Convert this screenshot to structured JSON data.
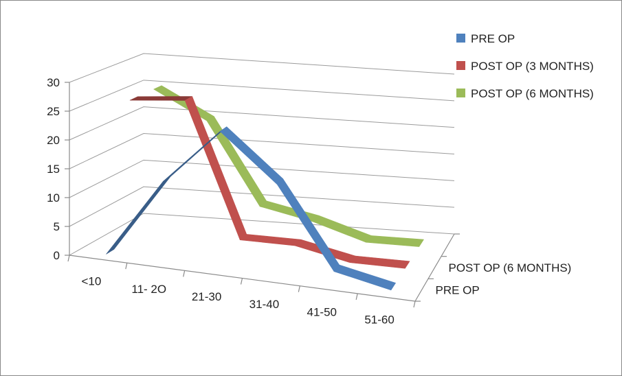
{
  "chart_data": {
    "type": "line",
    "style": "3d",
    "categories": [
      "<10",
      "11- 2O",
      "21-30",
      "31-40",
      "41-50",
      "51-60"
    ],
    "series": [
      {
        "name": "PRE OP",
        "values": [
          0,
          14,
          24,
          16,
          2,
          0
        ],
        "color": "#4f81bd"
      },
      {
        "name": "POST OP (3 MONTHS)",
        "values": [
          25,
          26,
          2,
          2,
          0,
          0
        ],
        "color": "#c0504d"
      },
      {
        "name": "POST OP (6 MONTHS)",
        "values": [
          25,
          20,
          5,
          3,
          0,
          0
        ],
        "color": "#9bbb59"
      }
    ],
    "depth_labels": [
      "POST OP (6 MONTHS)",
      "PRE OP"
    ],
    "y_ticks": [
      "0",
      "5",
      "10",
      "15",
      "20",
      "25",
      "30"
    ],
    "ylim": [
      0,
      30
    ],
    "grid": true,
    "legend_position": "top-right"
  }
}
